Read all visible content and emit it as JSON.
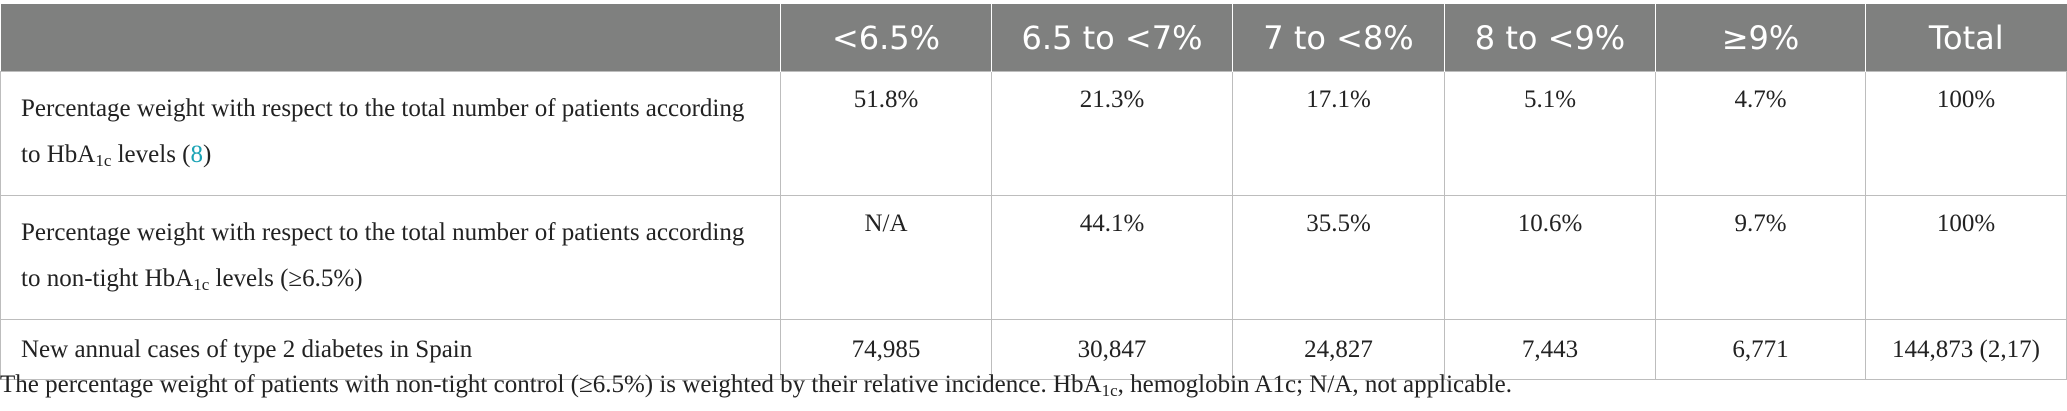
{
  "table": {
    "headers": [
      "",
      "<6.5%",
      "6.5 to <7%",
      "7 to <8%",
      "8 to <9%",
      "≥9%",
      "Total"
    ],
    "rows": [
      {
        "label_pre": "Percentage weight with respect to the total number of patients according to HbA",
        "label_sub": "1c",
        "label_mid": " levels (",
        "label_ref": "8",
        "label_post": ")",
        "values": [
          "51.8%",
          "21.3%",
          "17.1%",
          "5.1%",
          "4.7%",
          "100%"
        ]
      },
      {
        "label_pre": "Percentage weight with respect to the total number of patients according to non-tight HbA",
        "label_sub": "1c",
        "label_post": " levels (≥6.5%)",
        "values": [
          "N/A",
          "44.1%",
          "35.5%",
          "10.6%",
          "9.7%",
          "100%"
        ]
      },
      {
        "label": "New annual cases of type 2 diabetes in Spain",
        "values": [
          "74,985",
          "30,847",
          "24,827",
          "7,443",
          "6,771",
          "144,873 (2,17)"
        ]
      }
    ]
  },
  "footnote": {
    "pre": "The percentage weight of patients with non-tight control (≥6.5%) is weighted by their relative incidence. HbA",
    "sub": "1c",
    "post": ", hemoglobin A1c; N/A, not applicable."
  }
}
